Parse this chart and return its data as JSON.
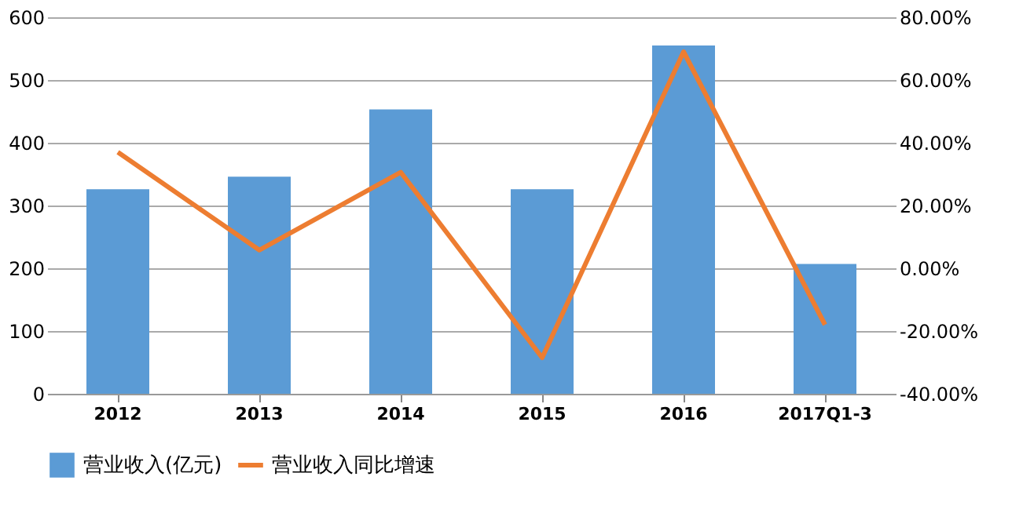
{
  "chart_data": {
    "type": "bar",
    "categories": [
      "2012",
      "2013",
      "2014",
      "2015",
      "2016",
      "2017Q1-3"
    ],
    "series": [
      {
        "name": "营业收入(亿元)",
        "color": "#5b9bd5",
        "values": [
          326,
          346,
          453,
          326,
          555,
          207
        ]
      },
      {
        "name": "营业收入同比增速",
        "type": "line",
        "axis": "y2",
        "color": "#ed7d31",
        "values": [
          37,
          5.8,
          30.6,
          -28.5,
          69,
          -18
        ]
      }
    ],
    "ylim": [
      0,
      600
    ],
    "yticks": [
      0,
      100,
      200,
      300,
      400,
      500,
      600
    ],
    "y2lim": [
      -40,
      80
    ],
    "y2ticks": [
      {
        "value": -40,
        "label": "-40.00%"
      },
      {
        "value": -20,
        "label": "-20.00%"
      },
      {
        "value": 0,
        "label": "0.00%"
      },
      {
        "value": 20,
        "label": "20.00%"
      },
      {
        "value": 40,
        "label": "40.00%"
      },
      {
        "value": 60,
        "label": "60.00%"
      },
      {
        "value": 80,
        "label": "80.00%"
      }
    ],
    "grid": "y",
    "legend": "bottom",
    "marker": "none",
    "line_style": "solid"
  }
}
